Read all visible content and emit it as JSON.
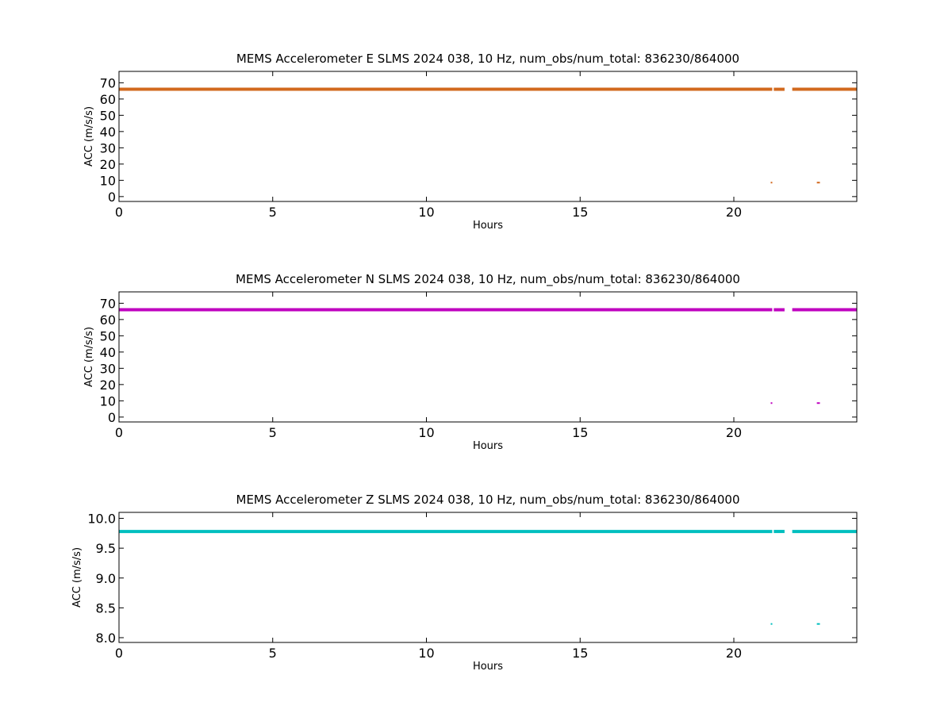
{
  "chart_data": [
    {
      "type": "scatter",
      "title": "MEMS Accelerometer E SLMS 2024 038, 10 Hz, num_obs/num_total: 836230/864000",
      "xlabel": "Hours",
      "ylabel": "ACC (m/s/s)",
      "xlim": [
        0,
        24
      ],
      "ylim": [
        -3,
        77
      ],
      "xticks": [
        0,
        5,
        10,
        15,
        20
      ],
      "xtick_labels": [
        "0",
        "5",
        "10",
        "15",
        "20"
      ],
      "yticks": [
        0,
        10,
        20,
        30,
        40,
        50,
        60,
        70
      ],
      "ytick_labels": [
        "0",
        "10",
        "20",
        "30",
        "40",
        "50",
        "60",
        "70"
      ],
      "grid": false,
      "color": "#d2691e",
      "series": [
        {
          "segments": [
            [
              0,
              21.25,
              66
            ],
            [
              21.3,
              21.6,
              66
            ],
            [
              21.6,
              21.65,
              66
            ],
            [
              21.9,
              24,
              66
            ]
          ],
          "outliers": [
            [
              21.2,
              21.22,
              8.6
            ],
            [
              22.7,
              22.8,
              8.6
            ]
          ]
        }
      ]
    },
    {
      "type": "scatter",
      "title": "MEMS Accelerometer N SLMS 2024 038, 10 Hz, num_obs/num_total: 836230/864000",
      "xlabel": "Hours",
      "ylabel": "ACC (m/s/s)",
      "xlim": [
        0,
        24
      ],
      "ylim": [
        -3,
        77
      ],
      "xticks": [
        0,
        5,
        10,
        15,
        20
      ],
      "xtick_labels": [
        "0",
        "5",
        "10",
        "15",
        "20"
      ],
      "yticks": [
        0,
        10,
        20,
        30,
        40,
        50,
        60,
        70
      ],
      "ytick_labels": [
        "0",
        "10",
        "20",
        "30",
        "40",
        "50",
        "60",
        "70"
      ],
      "grid": false,
      "color": "#bf00bf",
      "series": [
        {
          "segments": [
            [
              0,
              21.25,
              66
            ],
            [
              21.3,
              21.6,
              66
            ],
            [
              21.6,
              21.65,
              66
            ],
            [
              21.9,
              24,
              66
            ]
          ],
          "outliers": [
            [
              21.2,
              21.22,
              8.6
            ],
            [
              22.7,
              22.8,
              8.6
            ]
          ]
        }
      ]
    },
    {
      "type": "scatter",
      "title": "MEMS Accelerometer Z SLMS 2024 038, 10 Hz, num_obs/num_total: 836230/864000",
      "xlabel": "Hours",
      "ylabel": "ACC (m/s/s)",
      "xlim": [
        0,
        24
      ],
      "ylim": [
        7.92,
        10.1
      ],
      "xticks": [
        0,
        5,
        10,
        15,
        20
      ],
      "xtick_labels": [
        "0",
        "5",
        "10",
        "15",
        "20"
      ],
      "yticks": [
        8.0,
        8.5,
        9.0,
        9.5,
        10.0
      ],
      "ytick_labels": [
        "8.0",
        "8.5",
        "9.0",
        "9.5",
        "10.0"
      ],
      "grid": false,
      "color": "#00bfbf",
      "series": [
        {
          "segments": [
            [
              0,
              21.25,
              9.78
            ],
            [
              21.3,
              21.6,
              9.78
            ],
            [
              21.6,
              21.65,
              9.78
            ],
            [
              21.9,
              24,
              9.78
            ]
          ],
          "outliers": [
            [
              21.2,
              21.22,
              8.23
            ],
            [
              22.7,
              22.8,
              8.23
            ]
          ]
        }
      ]
    }
  ]
}
